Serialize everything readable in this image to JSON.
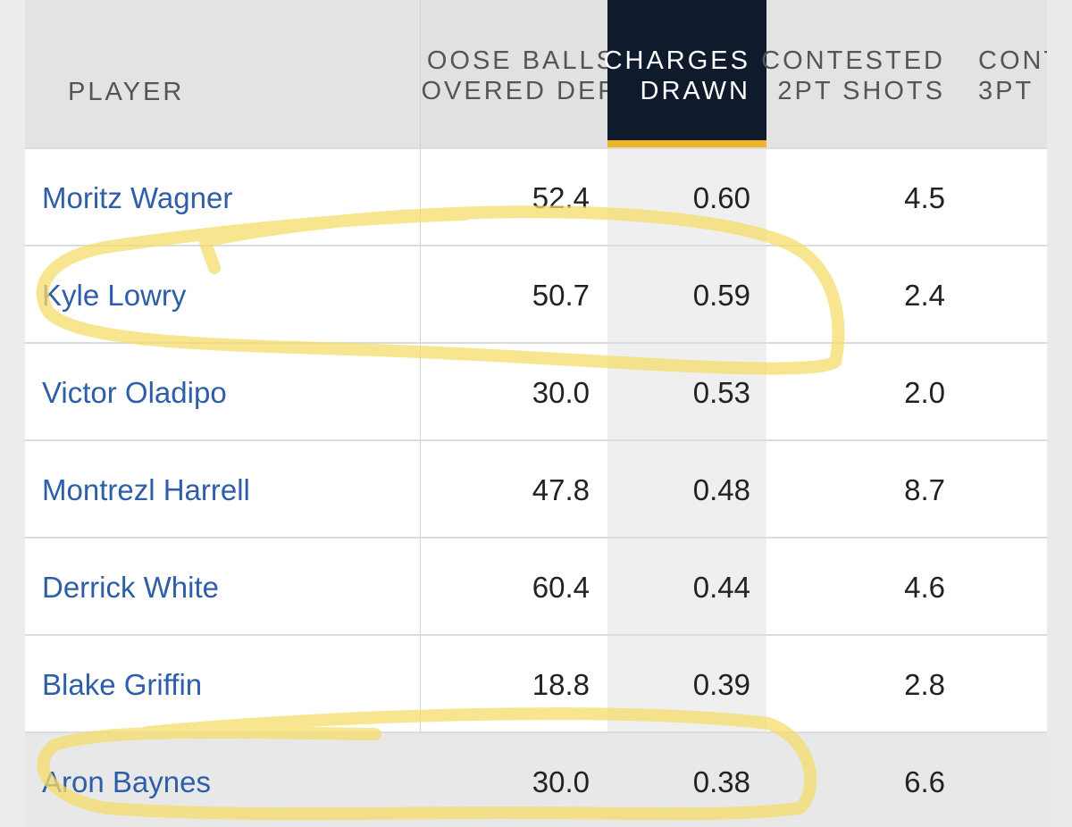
{
  "headers": {
    "player": "PLAYER",
    "loose_balls_line1": "OOSE BALLS",
    "loose_balls_line2": "OVERED DEF",
    "charges_line1": "CHARGES",
    "charges_line2": "DRAWN",
    "contested2_line1": "CONTESTED",
    "contested2_line2": "2PT SHOTS",
    "contested3_line1": "CONT",
    "contested3_line2": "3PT"
  },
  "rows": [
    {
      "player": "Moritz Wagner",
      "loose": "52.4",
      "charges": "0.60",
      "cont2": "4.5"
    },
    {
      "player": "Kyle Lowry",
      "loose": "50.7",
      "charges": "0.59",
      "cont2": "2.4"
    },
    {
      "player": "Victor Oladipo",
      "loose": "30.0",
      "charges": "0.53",
      "cont2": "2.0"
    },
    {
      "player": "Montrezl Harrell",
      "loose": "47.8",
      "charges": "0.48",
      "cont2": "8.7"
    },
    {
      "player": "Derrick White",
      "loose": "60.4",
      "charges": "0.44",
      "cont2": "4.6"
    },
    {
      "player": "Blake Griffin",
      "loose": "18.8",
      "charges": "0.39",
      "cont2": "2.8"
    },
    {
      "player": "Aron Baynes",
      "loose": "30.0",
      "charges": "0.38",
      "cont2": "6.6"
    }
  ],
  "colors": {
    "header_bg": "#e3e3e3",
    "active_header_bg": "#0f1b2d",
    "active_underline": "#f0b429",
    "player_link": "#2e5ea8",
    "highlighter": "#f5dc6b"
  }
}
